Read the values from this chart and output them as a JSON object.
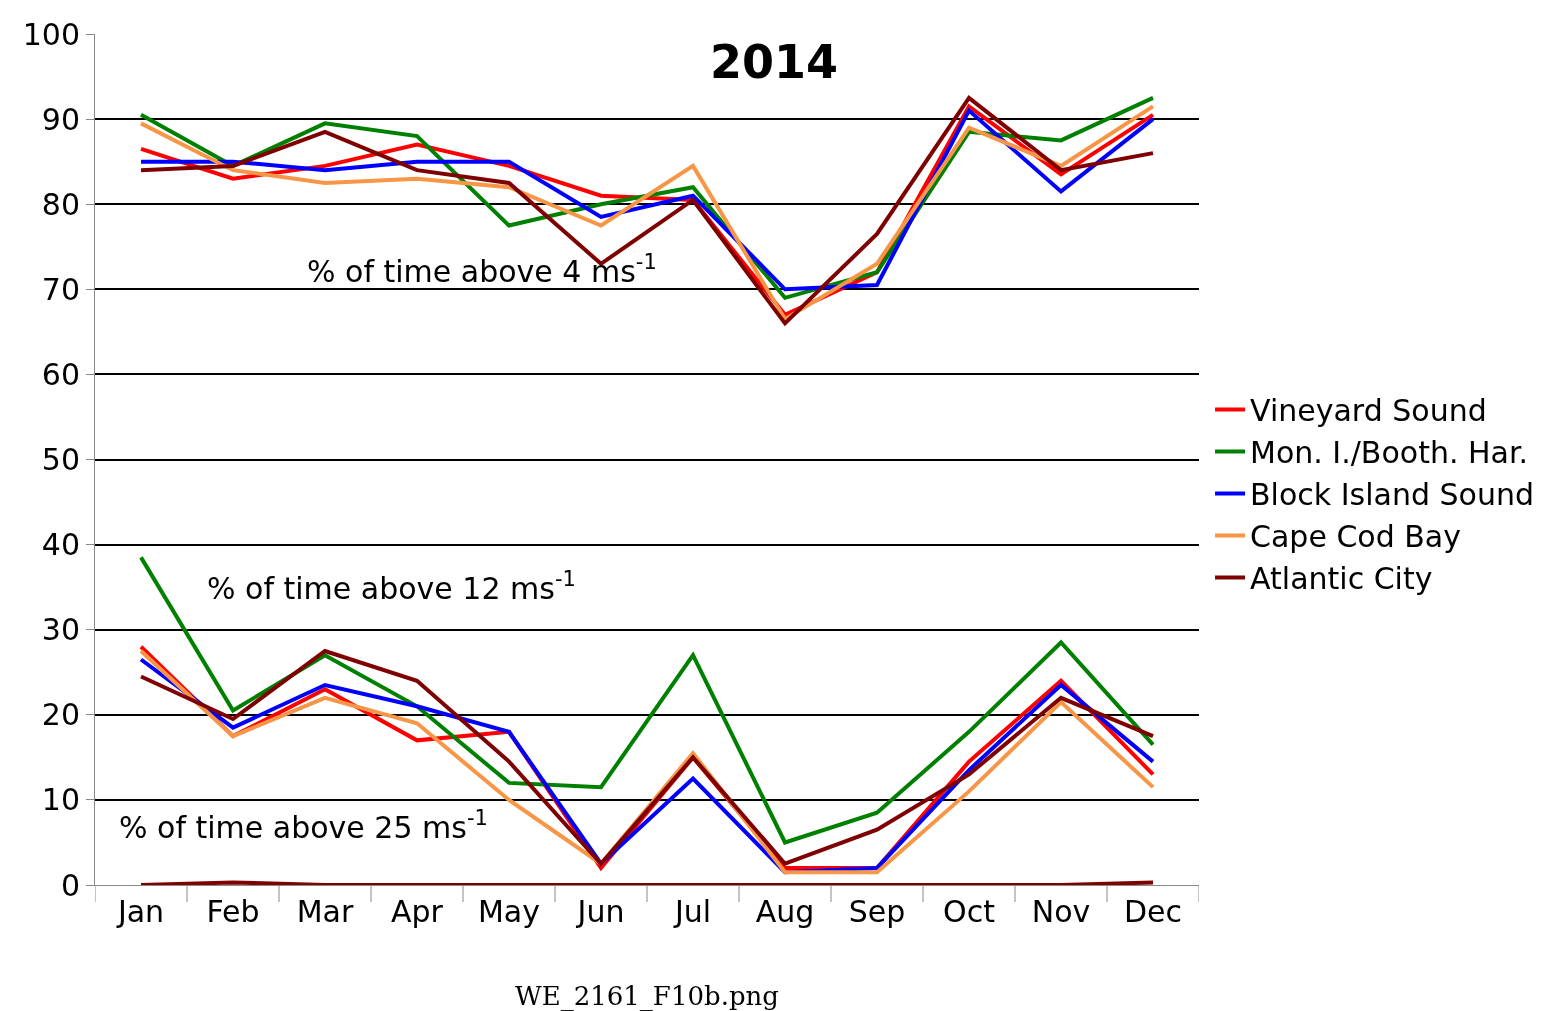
{
  "chart_data": {
    "type": "line",
    "title": "2014",
    "categories": [
      "Jan",
      "Feb",
      "Mar",
      "Apr",
      "May",
      "Jun",
      "Jul",
      "Aug",
      "Sep",
      "Oct",
      "Nov",
      "Dec"
    ],
    "series": [
      {
        "name": "Vineyard Sound",
        "color": "#ff0000",
        "values": [
          86.5,
          83,
          84.5,
          87,
          84.5,
          81,
          80.5,
          67,
          72,
          91.5,
          83.5,
          90.5
        ]
      },
      {
        "name": "Mon. I./Booth. Har.",
        "color": "#008000",
        "values": [
          90.5,
          84.5,
          89.5,
          88,
          77.5,
          80,
          82,
          69,
          72,
          88.5,
          87.5,
          92.5
        ]
      },
      {
        "name": "Block Island Sound",
        "color": "#0000ff",
        "values": [
          85,
          85,
          84,
          85,
          85,
          78.5,
          81,
          70,
          70.5,
          91,
          81.5,
          90
        ]
      },
      {
        "name": "Cape Cod Bay",
        "color": "#f79646",
        "values": [
          89.5,
          84,
          82.5,
          83,
          82,
          77.5,
          84.5,
          66.5,
          73,
          89,
          84.5,
          91.5
        ]
      },
      {
        "name": "Atlantic City",
        "color": "#7f0000",
        "values": [
          84,
          84.5,
          88.5,
          84,
          82.5,
          73,
          80.5,
          66,
          76.5,
          92.5,
          84,
          86
        ]
      },
      {
        "color": "#ff0000",
        "values": [
          28,
          17.5,
          23,
          17,
          18,
          2,
          15,
          2,
          2,
          14.5,
          24,
          13
        ]
      },
      {
        "color": "#008000",
        "values": [
          38.5,
          20.5,
          27,
          21,
          12,
          11.5,
          27,
          5,
          8.5,
          18,
          28.5,
          16.5
        ]
      },
      {
        "color": "#0000ff",
        "values": [
          26.5,
          18.5,
          23.5,
          21,
          18,
          2.5,
          12.5,
          1.5,
          2,
          13.5,
          23.5,
          14.5
        ]
      },
      {
        "color": "#f79646",
        "values": [
          27.5,
          17.5,
          22,
          19,
          10,
          2.5,
          15.5,
          1.5,
          1.5,
          11,
          21.5,
          11.5
        ]
      },
      {
        "color": "#7f0000",
        "values": [
          24.5,
          19.5,
          27.5,
          24,
          14.5,
          2.5,
          15,
          2.5,
          6.5,
          13,
          22,
          17.5
        ]
      },
      {
        "color": "#7f0000",
        "values": [
          0,
          0.3,
          0,
          0,
          0,
          0,
          0,
          0,
          0,
          0,
          0,
          0.3
        ]
      }
    ],
    "ylim": [
      0,
      100
    ],
    "yticks": [
      0,
      10,
      20,
      30,
      40,
      50,
      60,
      70,
      80,
      90,
      100
    ],
    "grid": "y",
    "legend": "right",
    "marker": "none",
    "line_style": "solid",
    "annotations": [
      "% of time above 4 ms$^{-1}$",
      "% of time above 12 ms$^{-1}$",
      "% of time above 25 ms$^{-1}$",
      "WE_2161_F10b.png"
    ]
  }
}
